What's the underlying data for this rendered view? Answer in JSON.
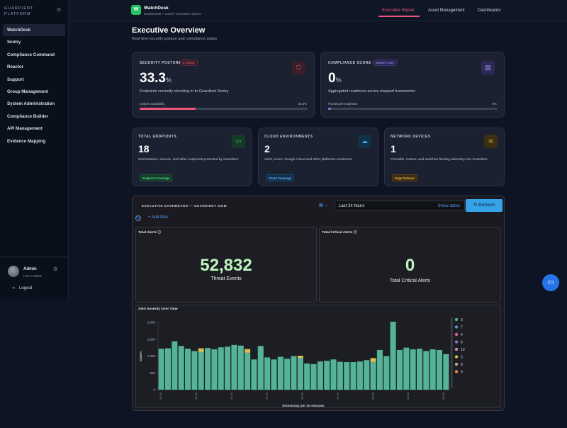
{
  "sidebar": {
    "brand_line1": "GUARDIENT",
    "brand_line2": "PLATFORM",
    "items": [
      {
        "label": "WatchDesk",
        "active": true
      },
      {
        "label": "Sentry"
      },
      {
        "label": "Compliance Command"
      },
      {
        "label": "Reactor"
      },
      {
        "label": "Support"
      },
      {
        "label": "Group Management"
      },
      {
        "label": "System Administration"
      },
      {
        "label": "Compliance Builder"
      },
      {
        "label": "API Management"
      },
      {
        "label": "Evidence Mapping"
      }
    ],
    "user": {
      "name": "Admin",
      "org": "HSA CYBER"
    },
    "logout_label": "Logout"
  },
  "topbar": {
    "logo_letter": "W",
    "app_title": "WatchDesk",
    "breadcrumb": "Dashboards • Assets • Executive reports",
    "tabs": [
      "Executive Report",
      "Asset Management",
      "Dashboards"
    ],
    "active_tab": "Executive Report"
  },
  "header": {
    "title": "Executive Overview",
    "subtitle": "Real-time security posture and compliance status"
  },
  "security_posture": {
    "label": "SECURITY POSTURE",
    "badge": "● Critical",
    "value": "33.3",
    "unit": "%",
    "desc": "Endpoints currently checking in to Guardient Sentry",
    "bar_label": "System availability",
    "bar_value": "33.3%",
    "bar_fraction": 0.333,
    "accent": "#f0557a"
  },
  "compliance_score": {
    "label": "COMPLIANCE SCORE",
    "badge": "Module Active",
    "value": "0",
    "unit": "%",
    "desc": "Aggregated readiness across mapped frameworks",
    "bar_label": "Framework readiness",
    "bar_value": "0%",
    "bar_fraction": 0.0,
    "accent": "#8b7cf6"
  },
  "total_endpoints": {
    "label": "TOTAL ENDPOINTS",
    "value": "18",
    "desc": "Workstations, servers, and other endpoints protected by Guardient",
    "tag": "Endpoint Coverage",
    "accent": "#22c55e"
  },
  "cloud_environments": {
    "label": "CLOUD ENVIRONMENTS",
    "value": "2",
    "desc": "AWS, Azure, Google Cloud and other platforms monitored",
    "tag": "Cloud Coverage",
    "accent": "#38a8f0"
  },
  "network_devices": {
    "label": "NETWORK DEVICES",
    "value": "1",
    "desc": "Firewalls, routers, and switches feeding telemetry into Guardient",
    "tag": "Edge Defense",
    "accent": "#f0a530"
  },
  "siem": {
    "title": "EXECUTIVE DASHBOARD — GUARDIENT SIEM",
    "time_range": "Last 24 hours",
    "show_dates": "Show dates",
    "refresh": "Refresh",
    "add_filter": "+ Add filter",
    "total_alerts": {
      "title": "Total Alerts",
      "value": "52,832",
      "caption": "Threat Events"
    },
    "critical_alerts": {
      "title": "Total Critical Alerts",
      "value": "0",
      "caption": "Total Critical Alerts"
    },
    "severity_chart_title": "Alert Severity Over Time"
  },
  "chart_data": {
    "type": "bar",
    "title": "Alert Severity Over Time",
    "xlabel": "timestamp per 30 minutes",
    "ylabel": "Count",
    "ylim": [
      0,
      2000
    ],
    "yticks": [
      "0",
      "500",
      "1,000",
      "1,500",
      "2,000"
    ],
    "xticks": [
      "06:00",
      "09:00",
      "12:00",
      "15:00",
      "18:00",
      "21:00",
      "00:00",
      "03:00",
      "06:00"
    ],
    "legend_position": "right",
    "series": [
      {
        "name": "3",
        "color": "#54b399",
        "values": [
          1220,
          1230,
          1440,
          1300,
          1220,
          1150,
          1120,
          1240,
          1200,
          1260,
          1280,
          1330,
          1310,
          1100,
          900,
          1300,
          960,
          900,
          980,
          920,
          1000,
          940,
          780,
          760,
          840,
          860,
          900,
          830,
          820,
          820,
          840,
          880,
          830,
          1180,
          1000,
          2020,
          1180,
          1250,
          1200,
          1220,
          1150,
          1200,
          1180,
          1060
        ]
      },
      {
        "name": "7",
        "color": "#6092c0",
        "values": [
          0,
          0,
          0,
          0,
          0,
          0,
          0,
          0,
          0,
          0,
          0,
          0,
          0,
          0,
          0,
          0,
          0,
          0,
          0,
          0,
          0,
          0,
          0,
          0,
          0,
          0,
          0,
          0,
          0,
          0,
          0,
          0,
          0,
          0,
          0,
          0,
          0,
          0,
          0,
          0,
          0,
          0,
          0,
          0
        ]
      },
      {
        "name": "4",
        "color": "#d36086",
        "values": [
          0,
          0,
          0,
          0,
          0,
          0,
          0,
          0,
          0,
          0,
          0,
          0,
          0,
          0,
          0,
          0,
          0,
          0,
          0,
          0,
          0,
          0,
          0,
          0,
          0,
          0,
          0,
          0,
          0,
          0,
          0,
          0,
          0,
          0,
          0,
          0,
          0,
          0,
          0,
          0,
          0,
          0,
          0,
          0
        ]
      },
      {
        "name": "6",
        "color": "#9170b8",
        "values": [
          0,
          0,
          0,
          0,
          0,
          0,
          0,
          0,
          0,
          0,
          0,
          0,
          0,
          0,
          0,
          0,
          0,
          0,
          0,
          0,
          0,
          0,
          0,
          0,
          0,
          0,
          0,
          0,
          0,
          0,
          0,
          0,
          0,
          0,
          0,
          0,
          0,
          0,
          0,
          0,
          0,
          0,
          0,
          0
        ]
      },
      {
        "name": "10",
        "color": "#ca8eae",
        "values": [
          0,
          0,
          0,
          0,
          0,
          0,
          0,
          0,
          0,
          0,
          0,
          0,
          0,
          0,
          0,
          0,
          0,
          0,
          0,
          0,
          0,
          0,
          0,
          0,
          0,
          0,
          0,
          0,
          0,
          0,
          0,
          0,
          0,
          0,
          0,
          0,
          0,
          0,
          0,
          0,
          0,
          0,
          0,
          0
        ]
      },
      {
        "name": "5",
        "color": "#d6bf57",
        "values": [
          0,
          0,
          0,
          0,
          0,
          0,
          110,
          0,
          0,
          0,
          0,
          0,
          0,
          110,
          0,
          0,
          0,
          0,
          0,
          0,
          0,
          70,
          0,
          0,
          0,
          0,
          0,
          0,
          0,
          0,
          0,
          0,
          110,
          0,
          0,
          0,
          0,
          0,
          0,
          0,
          0,
          0,
          0,
          0
        ]
      },
      {
        "name": "8",
        "color": "#b9a888",
        "values": [
          0,
          0,
          0,
          0,
          0,
          0,
          0,
          0,
          0,
          0,
          0,
          0,
          0,
          0,
          0,
          0,
          0,
          0,
          0,
          0,
          0,
          0,
          0,
          0,
          0,
          0,
          0,
          0,
          0,
          0,
          0,
          0,
          0,
          0,
          0,
          0,
          0,
          0,
          0,
          0,
          0,
          0,
          0,
          0
        ]
      },
      {
        "name": "9",
        "color": "#da8b45",
        "values": [
          0,
          0,
          0,
          0,
          0,
          0,
          0,
          0,
          0,
          0,
          0,
          0,
          0,
          0,
          0,
          0,
          0,
          0,
          0,
          0,
          0,
          0,
          0,
          0,
          0,
          0,
          0,
          0,
          0,
          0,
          0,
          0,
          0,
          0,
          0,
          0,
          0,
          0,
          0,
          0,
          0,
          0,
          0,
          0
        ]
      }
    ]
  }
}
